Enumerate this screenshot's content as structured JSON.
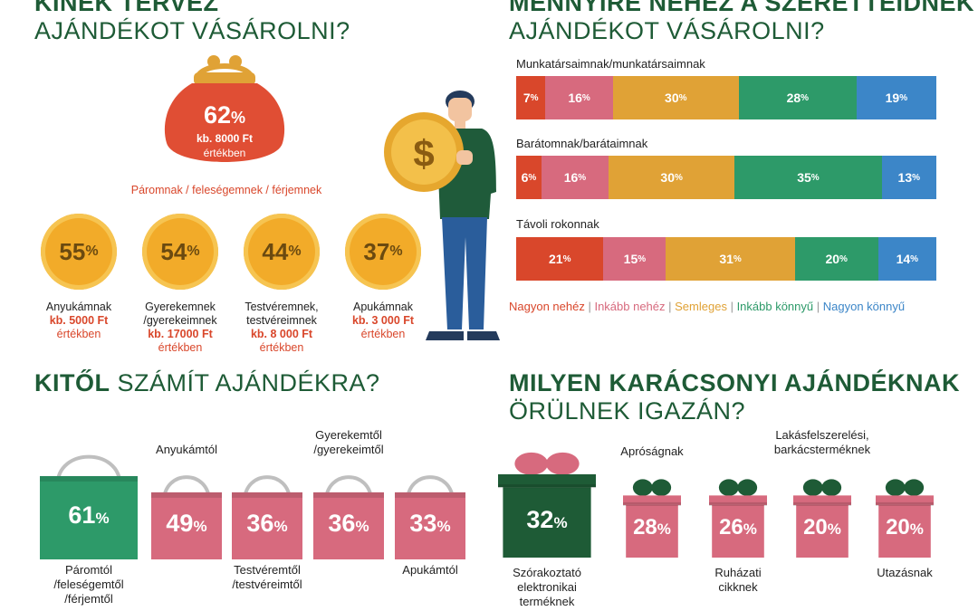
{
  "colors": {
    "green_dark": "#1e5b36",
    "orange": "#f2ab29",
    "red": "#d9472b",
    "pink": "#d76a7e",
    "gold": "#e0a236",
    "green": "#2d9a69",
    "blue": "#3c86c8"
  },
  "icons": {
    "purse": "purse-icon",
    "coin": "dollar-coin-icon",
    "person": "man-holding-coin-icon",
    "bag": "shopping-bag-icon",
    "gift": "gift-box-icon"
  },
  "section1": {
    "title_line1": "KINEK TERVEZ",
    "title_line2": "AJÁNDÉKOT VÁSÁROLNI?",
    "purse": {
      "value": "62",
      "unit": "%",
      "amount": "kb. 8000 Ft",
      "ertekben": "értékben",
      "label": "Páromnak / feleségemnek / férjemnek"
    },
    "circles": [
      {
        "value": "55",
        "unit": "%",
        "label": "Anyukámnak",
        "amount": "kb. 5000 Ft",
        "ertekben": "értékben"
      },
      {
        "value": "54",
        "unit": "%",
        "label": "Gyerekemnek /gyerekeimnek",
        "amount": "kb. 17000 Ft",
        "ertekben": "értékben"
      },
      {
        "value": "44",
        "unit": "%",
        "label": "Testvéremnek, testvéreimnek",
        "amount": "kb. 8 000 Ft",
        "ertekben": "értékben"
      },
      {
        "value": "37",
        "unit": "%",
        "label": "Apukámnak",
        "amount": "kb. 3 000 Ft",
        "ertekben": "értékben"
      }
    ]
  },
  "section2": {
    "title_line1": "MENNYIRE NEHÉZ A SZERETTEIDNEK",
    "title_line2": "AJÁNDÉKOT VÁSÁROLNI?"
  },
  "section3": {
    "title_bold": "KITŐL",
    "title_rest": " SZÁMÍT AJÁNDÉKRA?"
  },
  "section4": {
    "title_line1": "MILYEN KARÁCSONYI AJÁNDÉKNAK",
    "title_line2": "ÖRÜLNEK IGAZÁN?"
  },
  "chart_data": [
    {
      "type": "bar",
      "orientation": "horizontal-stacked",
      "unit": "%",
      "categories": [
        "Munkatársaimnak/munkatársaimnak",
        "Barátomnak/barátaimnak",
        "Távoli rokonnak"
      ],
      "series": [
        {
          "name": "Nagyon nehéz",
          "color": "#d9472b",
          "values": [
            7,
            6,
            21
          ]
        },
        {
          "name": "Inkább nehéz",
          "color": "#d76a7e",
          "values": [
            16,
            16,
            15
          ]
        },
        {
          "name": "Semleges",
          "color": "#e0a236",
          "values": [
            30,
            30,
            31
          ]
        },
        {
          "name": "Inkább könnyű",
          "color": "#2d9a69",
          "values": [
            28,
            35,
            20
          ]
        },
        {
          "name": "Nagyon könnyű",
          "color": "#3c86c8",
          "values": [
            19,
            13,
            14
          ]
        }
      ],
      "legend": "bottom"
    },
    {
      "type": "bar",
      "unit": "%",
      "categories": [
        "Páromtól /feleségemtől /férjemtől",
        "Anyukámtól",
        "Testvéremtől /testvéreimtől",
        "Gyerekemtől /gyerekeimtől",
        "Apukámtól"
      ],
      "values": [
        61,
        49,
        36,
        36,
        33
      ]
    },
    {
      "type": "bar",
      "unit": "%",
      "categories": [
        "Szórakoztató elektronikai terméknek",
        "Apróságnak",
        "Ruházati cikknek",
        "Lakásfelszerelési, barkácsterméknek",
        "Utazásnak"
      ],
      "values": [
        32,
        28,
        26,
        20,
        20
      ]
    }
  ]
}
